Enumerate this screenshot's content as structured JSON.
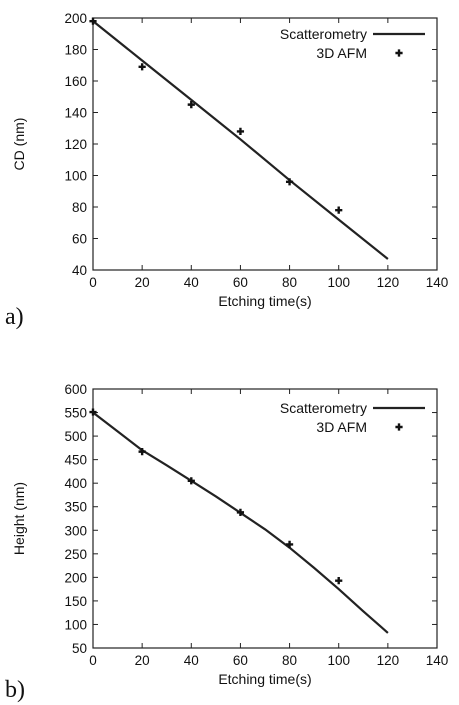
{
  "chart_data": [
    {
      "type": "line",
      "panel_label": "a)",
      "xlabel": "Etching time(s)",
      "ylabel": "CD (nm)",
      "xlim": [
        0,
        140
      ],
      "ylim": [
        40,
        200
      ],
      "x_ticks": [
        0,
        20,
        40,
        60,
        80,
        100,
        120,
        140
      ],
      "y_ticks": [
        40,
        60,
        80,
        100,
        120,
        140,
        160,
        180,
        200
      ],
      "legend_position": "top-right",
      "series": [
        {
          "name": "Scatterometry",
          "style": "line",
          "x": [
            0,
            20,
            40,
            60,
            80,
            100,
            120
          ],
          "y": [
            198,
            173,
            148,
            123,
            97,
            72,
            47
          ]
        },
        {
          "name": "3D AFM",
          "style": "marker",
          "x": [
            0,
            20,
            40,
            60,
            80,
            100
          ],
          "y": [
            198,
            169,
            145,
            128,
            96,
            78
          ]
        }
      ]
    },
    {
      "type": "line",
      "panel_label": "b)",
      "xlabel": "Etching time(s)",
      "ylabel": "Height (nm)",
      "xlim": [
        0,
        140
      ],
      "ylim": [
        50,
        600
      ],
      "x_ticks": [
        0,
        20,
        40,
        60,
        80,
        100,
        120,
        140
      ],
      "y_ticks": [
        50,
        100,
        150,
        200,
        250,
        300,
        350,
        400,
        450,
        500,
        550,
        600
      ],
      "legend_position": "top-right",
      "series": [
        {
          "name": "Scatterometry",
          "style": "line",
          "x": [
            0,
            10,
            20,
            30,
            40,
            50,
            60,
            70,
            80,
            90,
            100,
            110,
            120
          ],
          "y": [
            550,
            510,
            470,
            438,
            405,
            372,
            337,
            302,
            263,
            220,
            175,
            128,
            82
          ]
        },
        {
          "name": "3D AFM",
          "style": "marker",
          "x": [
            0,
            20,
            40,
            60,
            80,
            100
          ],
          "y": [
            551,
            467,
            405,
            338,
            270,
            193
          ]
        }
      ]
    }
  ],
  "colors": {
    "line": "#222222",
    "marker": "#111111",
    "axis": "#222222"
  }
}
